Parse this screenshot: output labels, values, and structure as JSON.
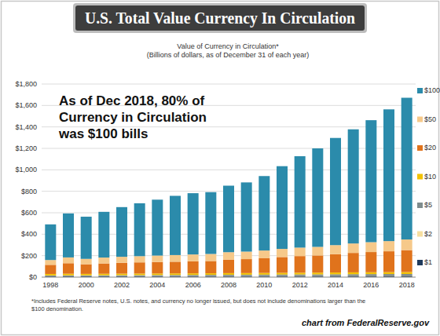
{
  "chart_data": {
    "type": "bar",
    "stacked": true,
    "title": "U.S. Total Value Currency In Circulation",
    "subtitle": "Value of Currency in Circulation*",
    "y_label": "(Billions of dollars, as of December 31 of each year)",
    "annotation": [
      "As of Dec 2018, 80% of",
      "Currency in Circulation",
      "was $100 bills"
    ],
    "footnote": [
      "*Includes Federal Reserve notes, U.S. notes, and currency no longer issued, but does not include denominations larger than the",
      "$100 denomination."
    ],
    "source": "chart from FederalReserve.gov",
    "categories": [
      "1998",
      null,
      "2000",
      null,
      "2002",
      null,
      "2004",
      null,
      "2006",
      null,
      "2008",
      null,
      "2010",
      null,
      "2012",
      null,
      "2014",
      null,
      "2016",
      null,
      "2018"
    ],
    "series": [
      {
        "name": "$1",
        "color": "#1f3a5c",
        "values": [
          6.7,
          7.1,
          7.3,
          7.6,
          7.9,
          8.1,
          8.4,
          8.6,
          8.9,
          9.3,
          9.8,
          10.0,
          10.3,
          10.8,
          11.1,
          11.4,
          11.7,
          11.9,
          12.2,
          12.5,
          12.7
        ]
      },
      {
        "name": "$2",
        "color": "#f7dfa0",
        "values": [
          1.2,
          1.2,
          1.2,
          1.3,
          1.3,
          1.4,
          1.5,
          1.5,
          1.6,
          1.7,
          1.7,
          1.8,
          1.9,
          1.9,
          2.0,
          2.0,
          2.1,
          2.2,
          2.3,
          2.3,
          2.4
        ]
      },
      {
        "name": "$5",
        "color": "#7f8c8d",
        "values": [
          8.0,
          8.5,
          8.5,
          8.7,
          9.1,
          9.3,
          9.8,
          10.1,
          10.3,
          10.6,
          10.9,
          11.0,
          11.3,
          11.6,
          11.9,
          12.2,
          12.6,
          13.2,
          13.6,
          14.0,
          14.4
        ]
      },
      {
        "name": "$10",
        "color": "#f2c200",
        "values": [
          13.7,
          14.8,
          13.2,
          13.9,
          14.3,
          14.5,
          14.3,
          14.4,
          14.5,
          14.4,
          15.0,
          15.0,
          15.5,
          15.8,
          16.2,
          16.4,
          16.8,
          17.3,
          17.6,
          17.9,
          18.3
        ]
      },
      {
        "name": "$20",
        "color": "#e0731c",
        "values": [
          85,
          98,
          90,
          96,
          101,
          104,
          107,
          109,
          112,
          114,
          126,
          130,
          137,
          147,
          155,
          160,
          171,
          181,
          188,
          194,
          204
        ]
      },
      {
        "name": "$50",
        "color": "#f6c98a",
        "values": [
          45,
          54,
          50,
          55,
          56,
          58,
          60,
          62,
          64,
          66,
          69,
          70,
          72,
          76,
          79,
          80,
          84,
          88,
          92,
          95,
          99
        ]
      },
      {
        "name": "$100",
        "color": "#2b8bab",
        "values": [
          332,
          410,
          393,
          426,
          463,
          493,
          521,
          552,
          571,
          576,
          620,
          645,
          694,
          771,
          852,
          918,
          999,
          1064,
          1137,
          1228,
          1321
        ]
      }
    ],
    "ylim": [
      0,
      1800
    ],
    "yticks": [
      {
        "value": 0,
        "label": "$0"
      },
      {
        "value": 200,
        "label": "$200"
      },
      {
        "value": 400,
        "label": "$400"
      },
      {
        "value": 600,
        "label": "$600"
      },
      {
        "value": 800,
        "label": "$800"
      },
      {
        "value": 1000,
        "label": "$1,000"
      },
      {
        "value": 1200,
        "label": "$1,200"
      },
      {
        "value": 1400,
        "label": "$1,400"
      },
      {
        "value": 1600,
        "label": "$1,600"
      },
      {
        "value": 1800,
        "label": "$1,800"
      }
    ],
    "grid": true,
    "legend": "right"
  }
}
